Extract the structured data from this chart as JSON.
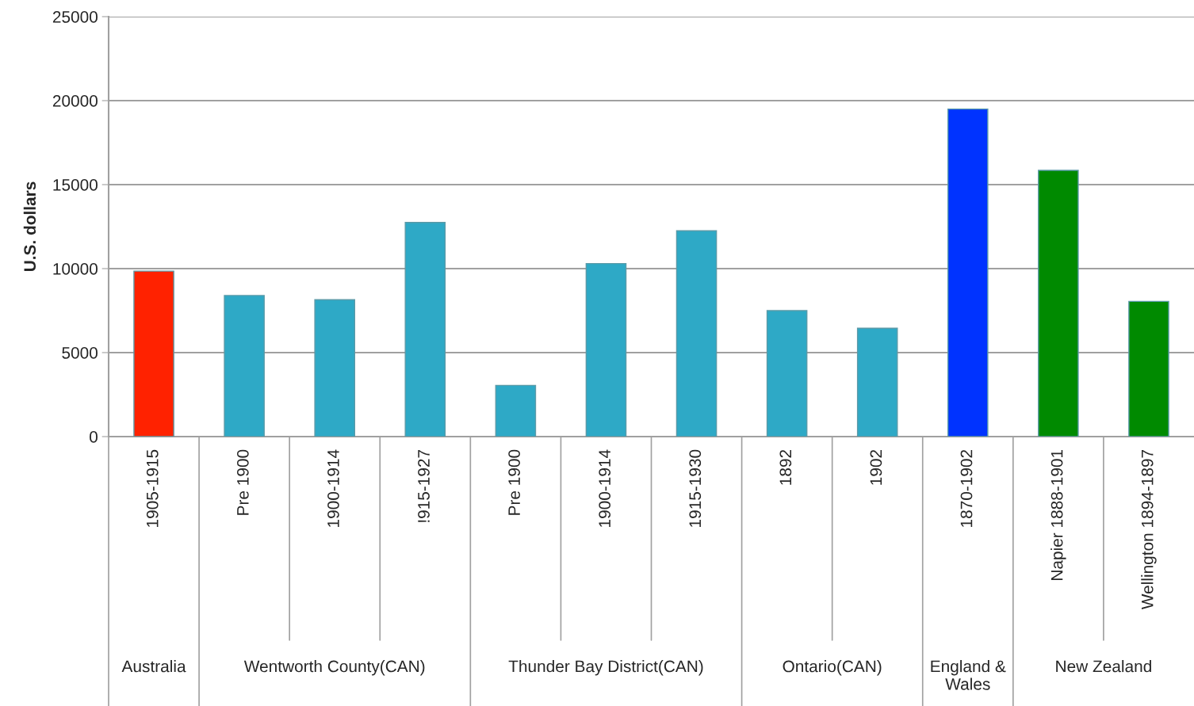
{
  "chart_data": {
    "type": "bar",
    "ylabel": "U.S. dollars",
    "categories": [
      "1905-1915",
      "Pre 1900",
      "1900-1914",
      "!915-1927",
      "Pre 1900",
      "1900-1914",
      "1915-1930",
      "1892",
      "1902",
      "1870-1902",
      "Napier 1888-1901",
      "Wellington 1894-1897"
    ],
    "values": [
      9850,
      8400,
      8150,
      12750,
      3050,
      10300,
      12250,
      7500,
      6450,
      19500,
      15850,
      8050
    ],
    "colors": [
      "#ff2200",
      "#2ea9c6",
      "#2ea9c6",
      "#2ea9c6",
      "#2ea9c6",
      "#2ea9c6",
      "#2ea9c6",
      "#2ea9c6",
      "#2ea9c6",
      "#0033ff",
      "#008a00",
      "#008a00"
    ],
    "ylim": [
      0,
      25000
    ],
    "yticks": [
      0,
      5000,
      10000,
      15000,
      20000,
      25000
    ],
    "grid": "y",
    "annotations": [
      "Australia",
      "Wentworth County(CAN)",
      "Thunder Bay District(CAN)",
      "Ontario(CAN)",
      "England & Wales",
      "New Zealand"
    ]
  }
}
